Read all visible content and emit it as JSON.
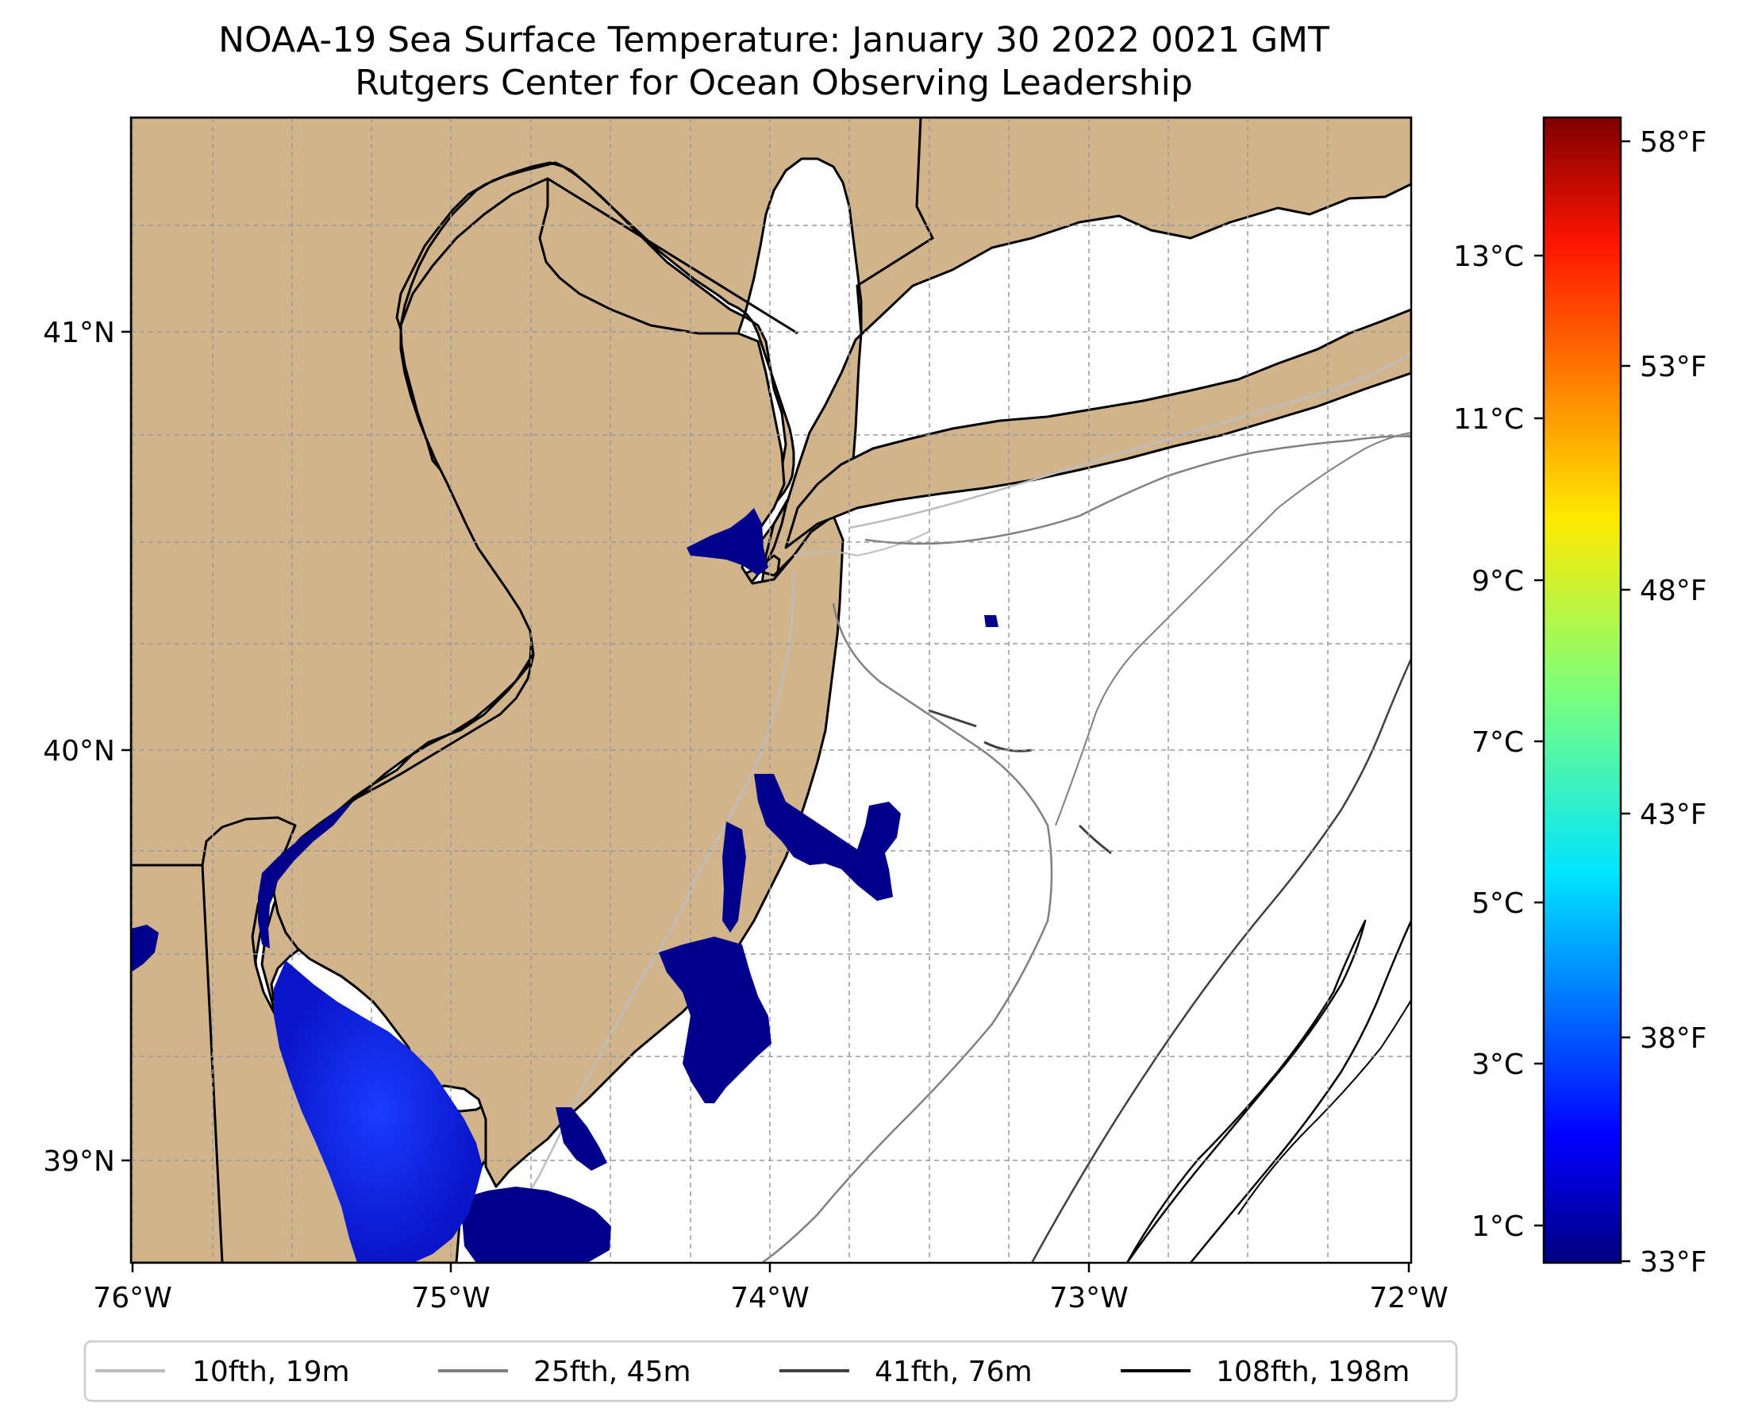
{
  "title": "NOAA-19 Sea Surface Temperature: January 30 2022 0021 GMT",
  "subtitle": "Rutgers Center for Ocean Observing Leadership",
  "map": {
    "lon_ticks": [
      "76°W",
      "75°W",
      "74°W",
      "73°W",
      "72°W"
    ],
    "lat_ticks": [
      "41°N",
      "40°N",
      "39°N"
    ],
    "land_color": "#d2b48c",
    "ocean_color": "#ffffff",
    "sst_color": "#00008b"
  },
  "colorbar": {
    "celsius_ticks": [
      "13°C",
      "11°C",
      "9°C",
      "7°C",
      "5°C",
      "3°C",
      "1°C"
    ],
    "fahrenheit_ticks": [
      "58°F",
      "53°F",
      "48°F",
      "43°F",
      "38°F",
      "33°F"
    ],
    "colormap": "jet",
    "min_f": 33,
    "max_f": 59
  },
  "legend": {
    "items": [
      {
        "label": "10fth, 19m",
        "color": "#bdbdbd"
      },
      {
        "label": "25fth, 45m",
        "color": "#808080"
      },
      {
        "label": "41fth, 76m",
        "color": "#404040"
      },
      {
        "label": "108fth, 198m",
        "color": "#000000"
      }
    ]
  }
}
